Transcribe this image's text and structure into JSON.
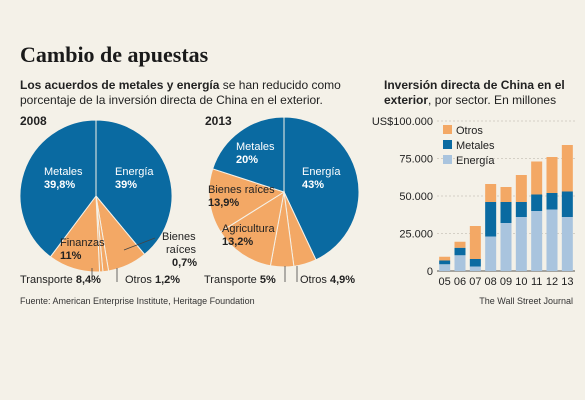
{
  "title": "Cambio de apuestas",
  "subtitle": {
    "bold": "Los acuerdos de metales y energía",
    "rest": " se han reducido como porcentaje de la inversión directa de China en el exterior."
  },
  "right_title": {
    "bold": "Inversión directa de China en el exterior",
    "rest": ", por sector. En millones"
  },
  "source": "Fuente: American Enterprise Institute, Heritage Foundation",
  "credit": "The Wall Street Journal",
  "colors": {
    "blue": "#0a6aa1",
    "orange": "#f3a865",
    "light_blue": "#a9c4de",
    "bg": "#f4f1e8"
  },
  "chart_data": [
    {
      "type": "pie",
      "title": "2008",
      "slices": [
        {
          "label": "Energía",
          "value_text": "39%",
          "value": 39,
          "color": "#0a6aa1"
        },
        {
          "label": "Transporte",
          "value_text": "8,4%",
          "value": 8.4,
          "color": "#f3a865"
        },
        {
          "label": "Otros",
          "value_text": "1,2%",
          "value": 1.2,
          "color": "#f3a865"
        },
        {
          "label": "Bienes raíces",
          "value_text": "0,7%",
          "value": 0.7,
          "color": "#f3a865"
        },
        {
          "label": "Finanzas",
          "value_text": "11%",
          "value": 11,
          "color": "#f3a865"
        },
        {
          "label": "Metales",
          "value_text": "39,8%",
          "value": 39.8,
          "color": "#0a6aa1"
        }
      ]
    },
    {
      "type": "pie",
      "title": "2013",
      "slices": [
        {
          "label": "Energía",
          "value_text": "43%",
          "value": 43,
          "color": "#0a6aa1"
        },
        {
          "label": "Otros",
          "value_text": "4,9%",
          "value": 4.9,
          "color": "#f3a865"
        },
        {
          "label": "Transporte",
          "value_text": "5%",
          "value": 5,
          "color": "#f3a865"
        },
        {
          "label": "Agricultura",
          "value_text": "13,2%",
          "value": 13.2,
          "color": "#f3a865"
        },
        {
          "label": "Bienes raíces",
          "value_text": "13,9%",
          "value": 13.9,
          "color": "#f3a865"
        },
        {
          "label": "Metales",
          "value_text": "20%",
          "value": 20,
          "color": "#0a6aa1"
        }
      ]
    },
    {
      "type": "bar",
      "stacked": true,
      "categories": [
        "05",
        "06",
        "07",
        "08",
        "09",
        "10",
        "11",
        "12",
        "13"
      ],
      "series": [
        {
          "name": "Energía",
          "color": "#a9c4de",
          "values": [
            4500,
            10500,
            3000,
            23000,
            32000,
            36000,
            40000,
            41000,
            36000
          ]
        },
        {
          "name": "Metales",
          "color": "#0a6aa1",
          "values": [
            2500,
            5000,
            5000,
            23000,
            14000,
            10000,
            11000,
            11000,
            17000
          ]
        },
        {
          "name": "Otros",
          "color": "#f3a865",
          "values": [
            2500,
            4000,
            22000,
            12000,
            10000,
            18000,
            22000,
            24000,
            31000
          ]
        }
      ],
      "yticks": [
        "US$100.000",
        "75.000",
        "50.000",
        "25.000",
        "0"
      ],
      "ylim": [
        0,
        100000
      ],
      "legend": [
        "Otros",
        "Metales",
        "Energía"
      ]
    }
  ]
}
